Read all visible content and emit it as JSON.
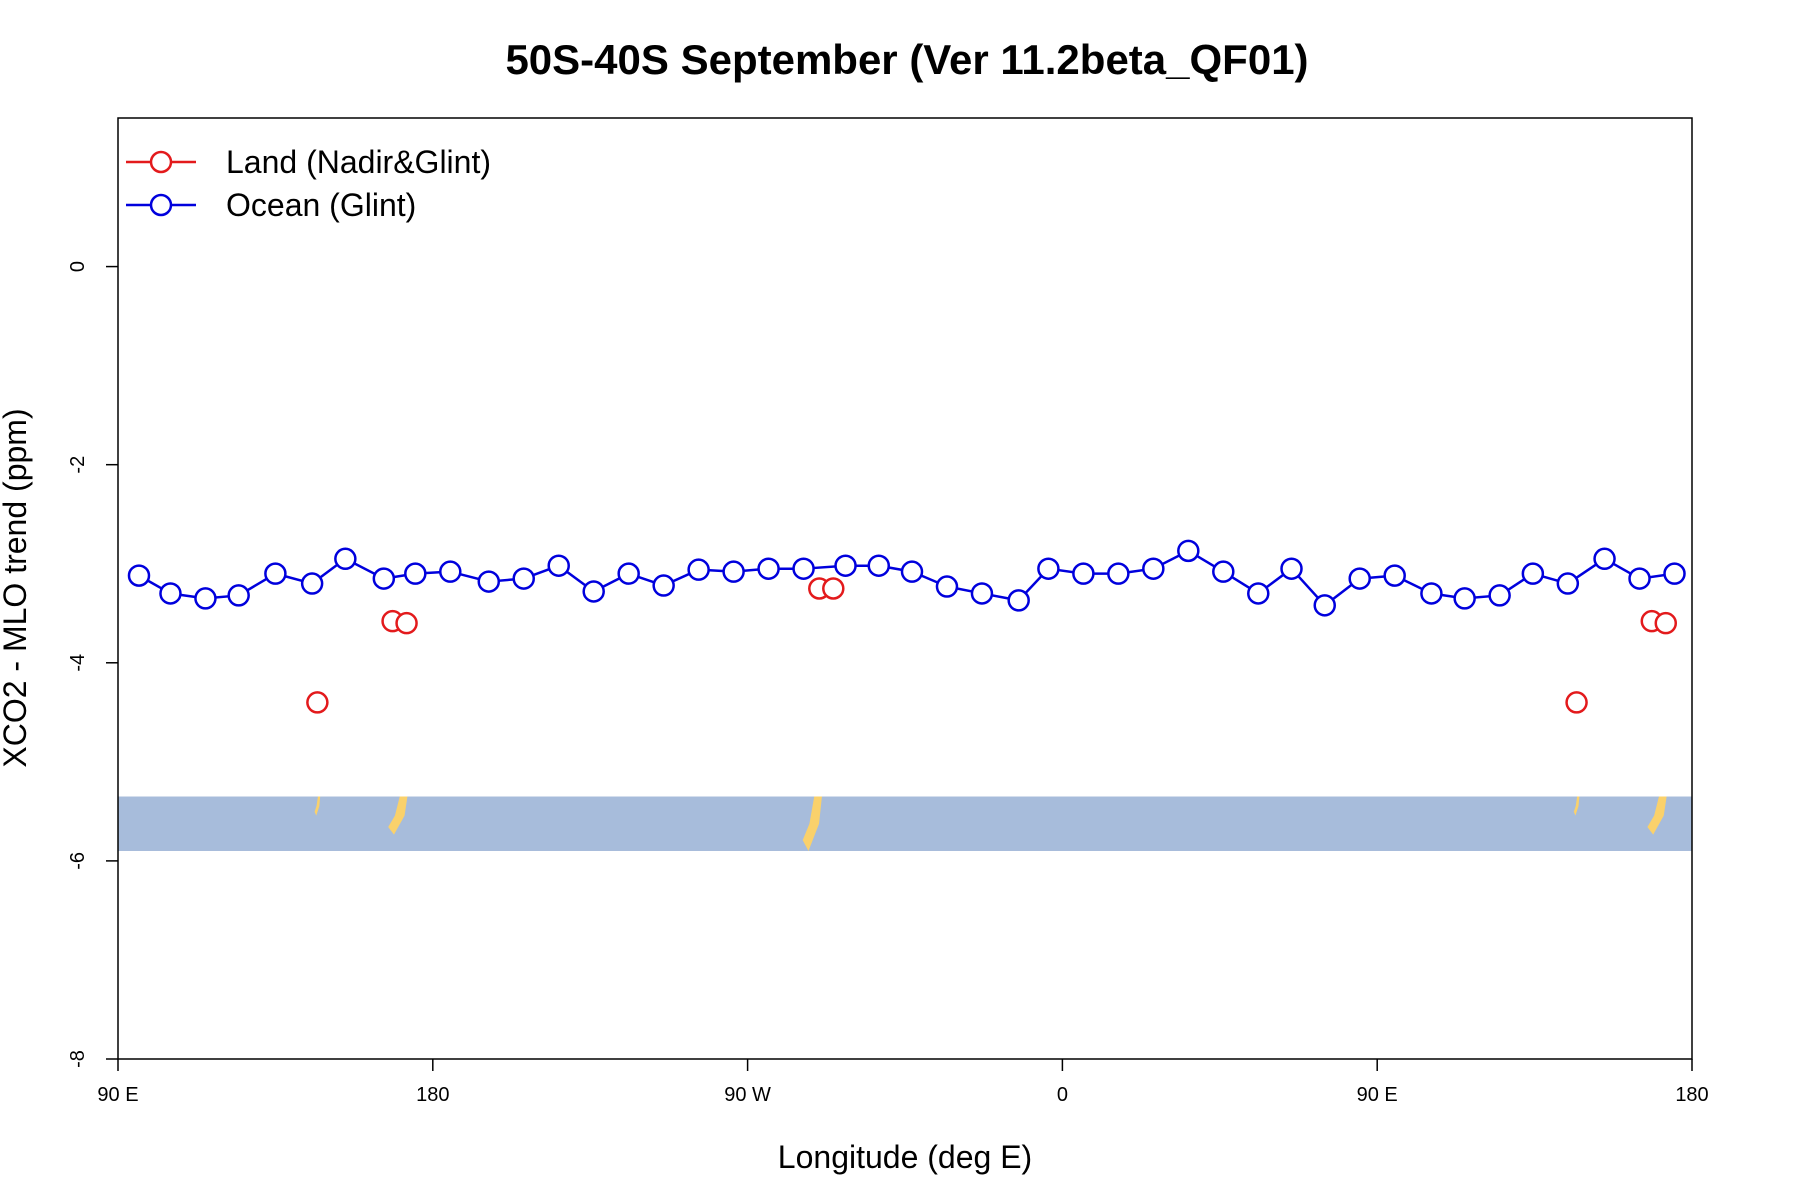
{
  "chart_data": {
    "type": "scatter",
    "title": "50S-40S September (Ver 11.2beta_QF01)",
    "xlabel": "Longitude (deg E)",
    "ylabel": "XCO2 - MLO trend (ppm)",
    "xlim": [
      90,
      540
    ],
    "ylim": [
      -8,
      1.5
    ],
    "x_ticks": [
      90,
      180,
      270,
      360,
      450,
      540
    ],
    "x_tick_labels": [
      "90 E",
      "180",
      "90 W",
      "0",
      "90 E",
      "180"
    ],
    "y_ticks": [
      0,
      -2,
      -4,
      -6,
      -8
    ],
    "y_tick_labels": [
      "0",
      "-2",
      "-4",
      "-6",
      "-8"
    ],
    "legend": {
      "position": "top-left"
    },
    "colors": {
      "land": "#e31a1c",
      "ocean": "#0000dd",
      "map_ocean": "#a7bcdb",
      "map_land": "#fad16b"
    },
    "map_band": {
      "y_top": -5.35,
      "y_bottom": -5.9
    },
    "series": [
      {
        "name": "Land (Nadir&Glint)",
        "color": "#e31a1c",
        "connect_gap": 10,
        "x": [
          147,
          168.5,
          172.5,
          290.5,
          294.5,
          507,
          528.5,
          532.5
        ],
        "y": [
          -4.4,
          -3.58,
          -3.6,
          -3.25,
          -3.25,
          -4.4,
          -3.58,
          -3.6
        ]
      },
      {
        "name": "Ocean (Glint)",
        "color": "#0000dd",
        "connect_gap": 12,
        "x": [
          96,
          105,
          115,
          124.5,
          135,
          145.5,
          155,
          166,
          175,
          185,
          196,
          206,
          216,
          226,
          236,
          246,
          256,
          266,
          276,
          286,
          298,
          307.5,
          317,
          327,
          337,
          347.5,
          356,
          366,
          376,
          386,
          396,
          406,
          416,
          425.5,
          435,
          445,
          455,
          465.5,
          475,
          485,
          494.5,
          504.5,
          515,
          525,
          535
        ],
        "y": [
          -3.12,
          -3.3,
          -3.35,
          -3.32,
          -3.1,
          -3.2,
          -2.95,
          -3.15,
          -3.1,
          -3.08,
          -3.18,
          -3.15,
          -3.02,
          -3.28,
          -3.1,
          -3.22,
          -3.06,
          -3.08,
          -3.05,
          -3.05,
          -3.02,
          -3.02,
          -3.08,
          -3.23,
          -3.3,
          -3.37,
          -3.05,
          -3.1,
          -3.1,
          -3.05,
          -2.87,
          -3.08,
          -3.3,
          -3.05,
          -3.42,
          -3.15,
          -3.12,
          -3.3,
          -3.35,
          -3.32,
          -3.1,
          -3.2,
          -2.95,
          -3.15,
          -3.1
        ]
      }
    ]
  }
}
